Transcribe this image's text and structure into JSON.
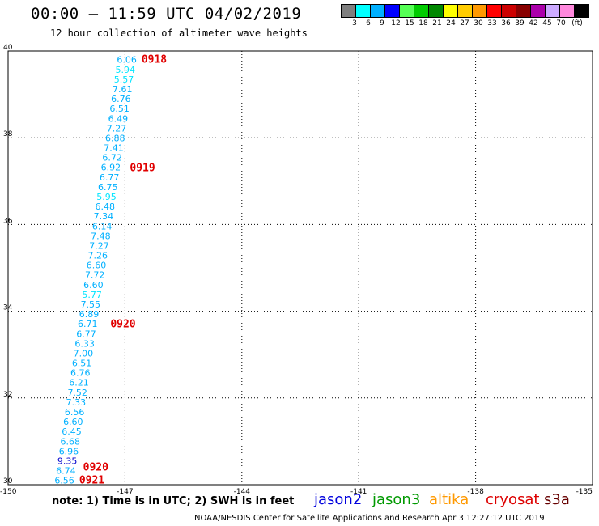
{
  "header": {
    "title": "00:00 – 11:59 UTC 04/02/2019",
    "subtitle": "12 hour collection of altimeter wave heights"
  },
  "color_scale": {
    "unit_label": "(ft)",
    "swatches": [
      {
        "color": "#7f7f7f",
        "label": "3"
      },
      {
        "color": "#00ffff",
        "label": "6"
      },
      {
        "color": "#00b0ff",
        "label": "9"
      },
      {
        "color": "#0000ff",
        "label": "12"
      },
      {
        "color": "#55ff55",
        "label": "15"
      },
      {
        "color": "#00cc00",
        "label": "18"
      },
      {
        "color": "#008800",
        "label": "21"
      },
      {
        "color": "#ffff00",
        "label": "24"
      },
      {
        "color": "#ffcc00",
        "label": "27"
      },
      {
        "color": "#ff9900",
        "label": "30"
      },
      {
        "color": "#ff0000",
        "label": "33"
      },
      {
        "color": "#cc0000",
        "label": "36"
      },
      {
        "color": "#880000",
        "label": "39"
      },
      {
        "color": "#aa00aa",
        "label": "42"
      },
      {
        "color": "#ccaaff",
        "label": "45"
      },
      {
        "color": "#ff88dd",
        "label": "70"
      },
      {
        "color": "#000000",
        "label": ""
      }
    ]
  },
  "map": {
    "lat_labels": [
      "40",
      "38",
      "36",
      "34",
      "32",
      "30"
    ],
    "lon_labels": [
      "-150",
      "-147",
      "-144",
      "-141",
      "-138",
      "-135"
    ],
    "lat_range": [
      30,
      40
    ],
    "lon_range": [
      -150,
      -135
    ],
    "grid_lons": [
      -147,
      -144,
      -141,
      -138
    ],
    "grid_lats": [
      38,
      36,
      34,
      32
    ],
    "track_start": {
      "lon": -146.7,
      "lat": 39.8
    },
    "track_end": {
      "lon": -148.3,
      "lat": 30.1
    },
    "point_colors": {
      "cyan": "#00b0ff",
      "light": "#00e5ff",
      "blue": "#0000cc"
    },
    "wave_heights": [
      {
        "value": "6.06",
        "tone": "cyan"
      },
      {
        "value": "5.94",
        "tone": "light"
      },
      {
        "value": "5.57",
        "tone": "light"
      },
      {
        "value": "7.61",
        "tone": "cyan"
      },
      {
        "value": "6.76",
        "tone": "cyan"
      },
      {
        "value": "6.51",
        "tone": "cyan"
      },
      {
        "value": "6.49",
        "tone": "cyan"
      },
      {
        "value": "7.27",
        "tone": "cyan"
      },
      {
        "value": "6.88",
        "tone": "cyan"
      },
      {
        "value": "7.41",
        "tone": "cyan"
      },
      {
        "value": "6.72",
        "tone": "cyan"
      },
      {
        "value": "6.92",
        "tone": "cyan"
      },
      {
        "value": "6.77",
        "tone": "cyan"
      },
      {
        "value": "6.75",
        "tone": "cyan"
      },
      {
        "value": "5.95",
        "tone": "light"
      },
      {
        "value": "6.48",
        "tone": "cyan"
      },
      {
        "value": "7.34",
        "tone": "cyan"
      },
      {
        "value": "6.14",
        "tone": "cyan"
      },
      {
        "value": "7.48",
        "tone": "cyan"
      },
      {
        "value": "7.27",
        "tone": "cyan"
      },
      {
        "value": "7.26",
        "tone": "cyan"
      },
      {
        "value": "6.60",
        "tone": "cyan"
      },
      {
        "value": "7.72",
        "tone": "cyan"
      },
      {
        "value": "6.60",
        "tone": "cyan"
      },
      {
        "value": "5.77",
        "tone": "light"
      },
      {
        "value": "7.55",
        "tone": "cyan"
      },
      {
        "value": "6.89",
        "tone": "cyan"
      },
      {
        "value": "6.71",
        "tone": "cyan"
      },
      {
        "value": "6.77",
        "tone": "cyan"
      },
      {
        "value": "6.33",
        "tone": "cyan"
      },
      {
        "value": "7.00",
        "tone": "cyan"
      },
      {
        "value": "6.51",
        "tone": "cyan"
      },
      {
        "value": "6.76",
        "tone": "cyan"
      },
      {
        "value": "6.21",
        "tone": "cyan"
      },
      {
        "value": "7.52",
        "tone": "cyan"
      },
      {
        "value": "7.33",
        "tone": "cyan"
      },
      {
        "value": "6.56",
        "tone": "cyan"
      },
      {
        "value": "6.60",
        "tone": "cyan"
      },
      {
        "value": "6.45",
        "tone": "cyan"
      },
      {
        "value": "6.68",
        "tone": "cyan"
      },
      {
        "value": "6.96",
        "tone": "cyan"
      },
      {
        "value": "9.35",
        "tone": "blue"
      },
      {
        "value": "6.74",
        "tone": "cyan"
      },
      {
        "value": "6.56",
        "tone": "cyan"
      }
    ],
    "time_stamps": [
      {
        "label": "0918",
        "lon": -146.7,
        "lat": 39.8
      },
      {
        "label": "0919",
        "lon": -147.0,
        "lat": 37.3
      },
      {
        "label": "0920",
        "lon": -147.5,
        "lat": 33.7
      },
      {
        "label": "0920",
        "lon": -148.2,
        "lat": 30.4
      },
      {
        "label": "0921",
        "lon": -148.3,
        "lat": 30.1
      }
    ]
  },
  "note": "note: 1) Time is in UTC; 2) SWH is in feet",
  "satellites": [
    {
      "name": "jason2",
      "color": "#0000dd"
    },
    {
      "name": "jason3",
      "color": "#009900"
    },
    {
      "name": "altika",
      "color": "#ff9900"
    },
    {
      "name": "cryosat",
      "color": "#dd0000"
    },
    {
      "name": "s3a",
      "color": "#660000"
    }
  ],
  "footer": "NOAA/NESDIS Center for Satellite Applications and Research   Apr  3 12:27:12 UTC 2019"
}
